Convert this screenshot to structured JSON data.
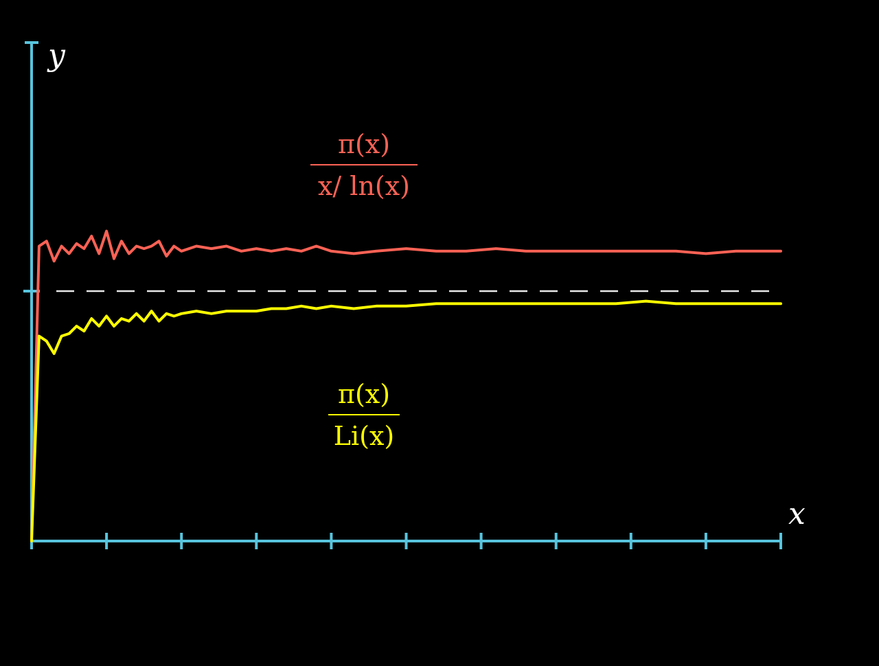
{
  "colors": {
    "background": "#000000",
    "axis": "#58c4dd",
    "reference": "#e8e8e8",
    "series_ln": "#fc6255",
    "series_li": "#ffff00"
  },
  "chart_data": {
    "type": "line",
    "xlabel": "x",
    "ylabel": "y",
    "x_tick_count": 10,
    "x_tick_labels": [],
    "y_tick_labels": [],
    "xlim": [
      0,
      10
    ],
    "ylim": [
      0,
      2
    ],
    "grid": false,
    "legend": "none",
    "reference_line": {
      "y": 1,
      "style": "dashed"
    },
    "series": [
      {
        "name_numerator": "π(x)",
        "name_denominator": "x/ ln(x)",
        "color": "#fc6255",
        "x": [
          0,
          0.1,
          0.2,
          0.3,
          0.4,
          0.5,
          0.6,
          0.7,
          0.8,
          0.9,
          1.0,
          1.1,
          1.2,
          1.3,
          1.4,
          1.5,
          1.6,
          1.7,
          1.8,
          1.9,
          2.0,
          2.2,
          2.4,
          2.6,
          2.8,
          3.0,
          3.2,
          3.4,
          3.6,
          3.8,
          4.0,
          4.3,
          4.6,
          5.0,
          5.4,
          5.8,
          6.2,
          6.6,
          7.0,
          7.4,
          7.8,
          8.2,
          8.6,
          9.0,
          9.4,
          9.8,
          10.0
        ],
        "y": [
          0,
          1.18,
          1.2,
          1.12,
          1.18,
          1.15,
          1.19,
          1.17,
          1.22,
          1.15,
          1.24,
          1.13,
          1.2,
          1.15,
          1.18,
          1.17,
          1.18,
          1.2,
          1.14,
          1.18,
          1.16,
          1.18,
          1.17,
          1.18,
          1.16,
          1.17,
          1.16,
          1.17,
          1.16,
          1.18,
          1.16,
          1.15,
          1.16,
          1.17,
          1.16,
          1.16,
          1.17,
          1.16,
          1.16,
          1.16,
          1.16,
          1.16,
          1.16,
          1.15,
          1.16,
          1.16,
          1.16
        ]
      },
      {
        "name_numerator": "π(x)",
        "name_denominator": "Li(x)",
        "color": "#ffff00",
        "x": [
          0,
          0.1,
          0.2,
          0.3,
          0.4,
          0.5,
          0.6,
          0.7,
          0.8,
          0.9,
          1.0,
          1.1,
          1.2,
          1.3,
          1.4,
          1.5,
          1.6,
          1.7,
          1.8,
          1.9,
          2.0,
          2.2,
          2.4,
          2.6,
          2.8,
          3.0,
          3.2,
          3.4,
          3.6,
          3.8,
          4.0,
          4.3,
          4.6,
          5.0,
          5.4,
          5.8,
          6.2,
          6.6,
          7.0,
          7.4,
          7.8,
          8.2,
          8.6,
          9.0,
          9.4,
          9.8,
          10.0
        ],
        "y": [
          0,
          0.82,
          0.8,
          0.75,
          0.82,
          0.83,
          0.86,
          0.84,
          0.89,
          0.86,
          0.9,
          0.86,
          0.89,
          0.88,
          0.91,
          0.88,
          0.92,
          0.88,
          0.91,
          0.9,
          0.91,
          0.92,
          0.91,
          0.92,
          0.92,
          0.92,
          0.93,
          0.93,
          0.94,
          0.93,
          0.94,
          0.93,
          0.94,
          0.94,
          0.95,
          0.95,
          0.95,
          0.95,
          0.95,
          0.95,
          0.95,
          0.96,
          0.95,
          0.95,
          0.95,
          0.95,
          0.95
        ]
      }
    ]
  }
}
